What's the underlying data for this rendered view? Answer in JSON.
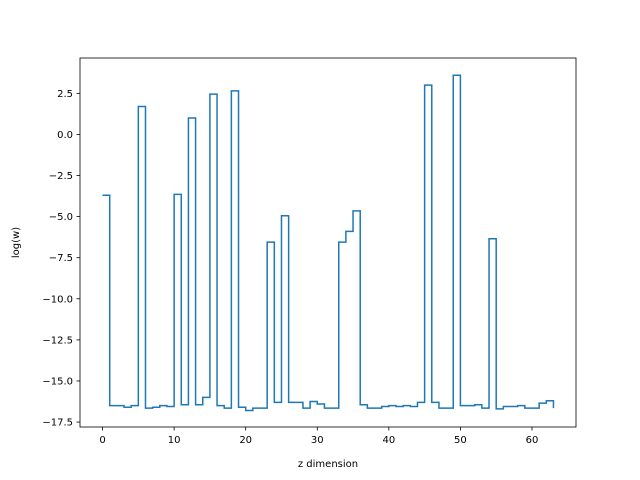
{
  "chart_data": {
    "type": "line",
    "drawstyle": "steps-post",
    "title": "",
    "xlabel": "z dimension",
    "ylabel": "log(w)",
    "xlim": [
      -3.15,
      66.15
    ],
    "ylim": [
      -17.8,
      4.65
    ],
    "xticks": [
      0,
      10,
      20,
      30,
      40,
      50,
      60
    ],
    "xtick_labels": [
      "0",
      "10",
      "20",
      "30",
      "40",
      "50",
      "60"
    ],
    "yticks": [
      2.5,
      0.0,
      -2.5,
      -5.0,
      -7.5,
      -10.0,
      -12.5,
      -15.0,
      -17.5
    ],
    "ytick_labels": [
      "2.5",
      "0.0",
      "−2.5",
      "−5.0",
      "−7.5",
      "−10.0",
      "−12.5",
      "−15.0",
      "−17.5"
    ],
    "grid": false,
    "line_color": "#1f77b4",
    "series": [
      {
        "x": [
          0,
          1,
          2,
          3,
          4,
          5,
          6,
          7,
          8,
          9,
          10,
          11,
          12,
          13,
          14,
          15,
          16,
          17,
          18,
          19,
          20,
          21,
          22,
          23,
          24,
          25,
          26,
          27,
          28,
          29,
          30,
          31,
          32,
          33,
          34,
          35,
          36,
          37,
          38,
          39,
          40,
          41,
          42,
          43,
          44,
          45,
          46,
          47,
          48,
          49,
          50,
          51,
          52,
          53,
          54,
          55,
          56,
          57,
          58,
          59,
          60,
          61,
          62,
          63
        ],
        "values": [
          -3.7,
          -16.5,
          -16.5,
          -16.6,
          -16.5,
          1.7,
          -16.65,
          -16.6,
          -16.5,
          -16.55,
          -3.65,
          -16.45,
          1.0,
          -16.45,
          -16.0,
          2.45,
          -16.5,
          -16.65,
          2.65,
          -16.6,
          -16.8,
          -16.65,
          -16.65,
          -6.55,
          -16.3,
          -4.95,
          -16.3,
          -16.3,
          -16.65,
          -16.25,
          -16.4,
          -16.65,
          -16.65,
          -6.55,
          -5.9,
          -4.65,
          -16.45,
          -16.65,
          -16.65,
          -16.55,
          -16.5,
          -16.55,
          -16.5,
          -16.55,
          -16.3,
          3.0,
          -16.3,
          -16.65,
          -16.65,
          3.6,
          -16.5,
          -16.5,
          -16.45,
          -16.65,
          -6.35,
          -16.7,
          -16.55,
          -16.55,
          -16.5,
          -16.65,
          -16.65,
          -16.35,
          -16.2,
          -16.65
        ]
      }
    ]
  }
}
